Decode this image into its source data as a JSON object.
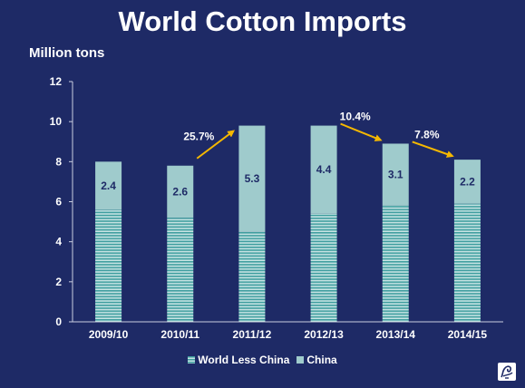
{
  "title": "World Cotton Imports",
  "unit_label": "Million tons",
  "colors": {
    "background": "#1e2a66",
    "world_less_china": "#3f9e9f",
    "china": "#9fcbcc",
    "arrow": "#f5b800",
    "axis": "#c9cde0"
  },
  "chart_data": {
    "type": "bar",
    "stacked": true,
    "categories": [
      "2009/10",
      "2010/11",
      "2011/12",
      "2012/13",
      "2013/14",
      "2014/15"
    ],
    "series": [
      {
        "name": "World Less China",
        "values": [
          5.6,
          5.2,
          4.5,
          5.4,
          5.8,
          5.9
        ]
      },
      {
        "name": "China",
        "values": [
          2.4,
          2.6,
          5.3,
          4.4,
          3.1,
          2.2
        ]
      }
    ],
    "data_labels": [
      "2.4",
      "2.6",
      "5.3",
      "4.4",
      "3.1",
      "2.2"
    ],
    "yticks": [
      "0",
      "2",
      "4",
      "6",
      "8",
      "10",
      "12"
    ],
    "ylim": [
      0,
      12
    ],
    "ylabel": "Million tons",
    "legend_position": "bottom",
    "annotations": [
      {
        "text": "25.7%",
        "direction": "up",
        "from_category": "2010/11",
        "to_category": "2011/12"
      },
      {
        "text": "10.4%",
        "direction": "down",
        "from_category": "2012/13",
        "to_category": "2013/14"
      },
      {
        "text": "7.8%",
        "direction": "down",
        "from_category": "2013/14",
        "to_category": "2014/15"
      }
    ]
  },
  "legend": {
    "items": [
      {
        "label": "World Less China",
        "style": "striped"
      },
      {
        "label": "China",
        "style": "solid"
      }
    ]
  },
  "logo": {
    "icon": "cotton-boll-icon"
  }
}
